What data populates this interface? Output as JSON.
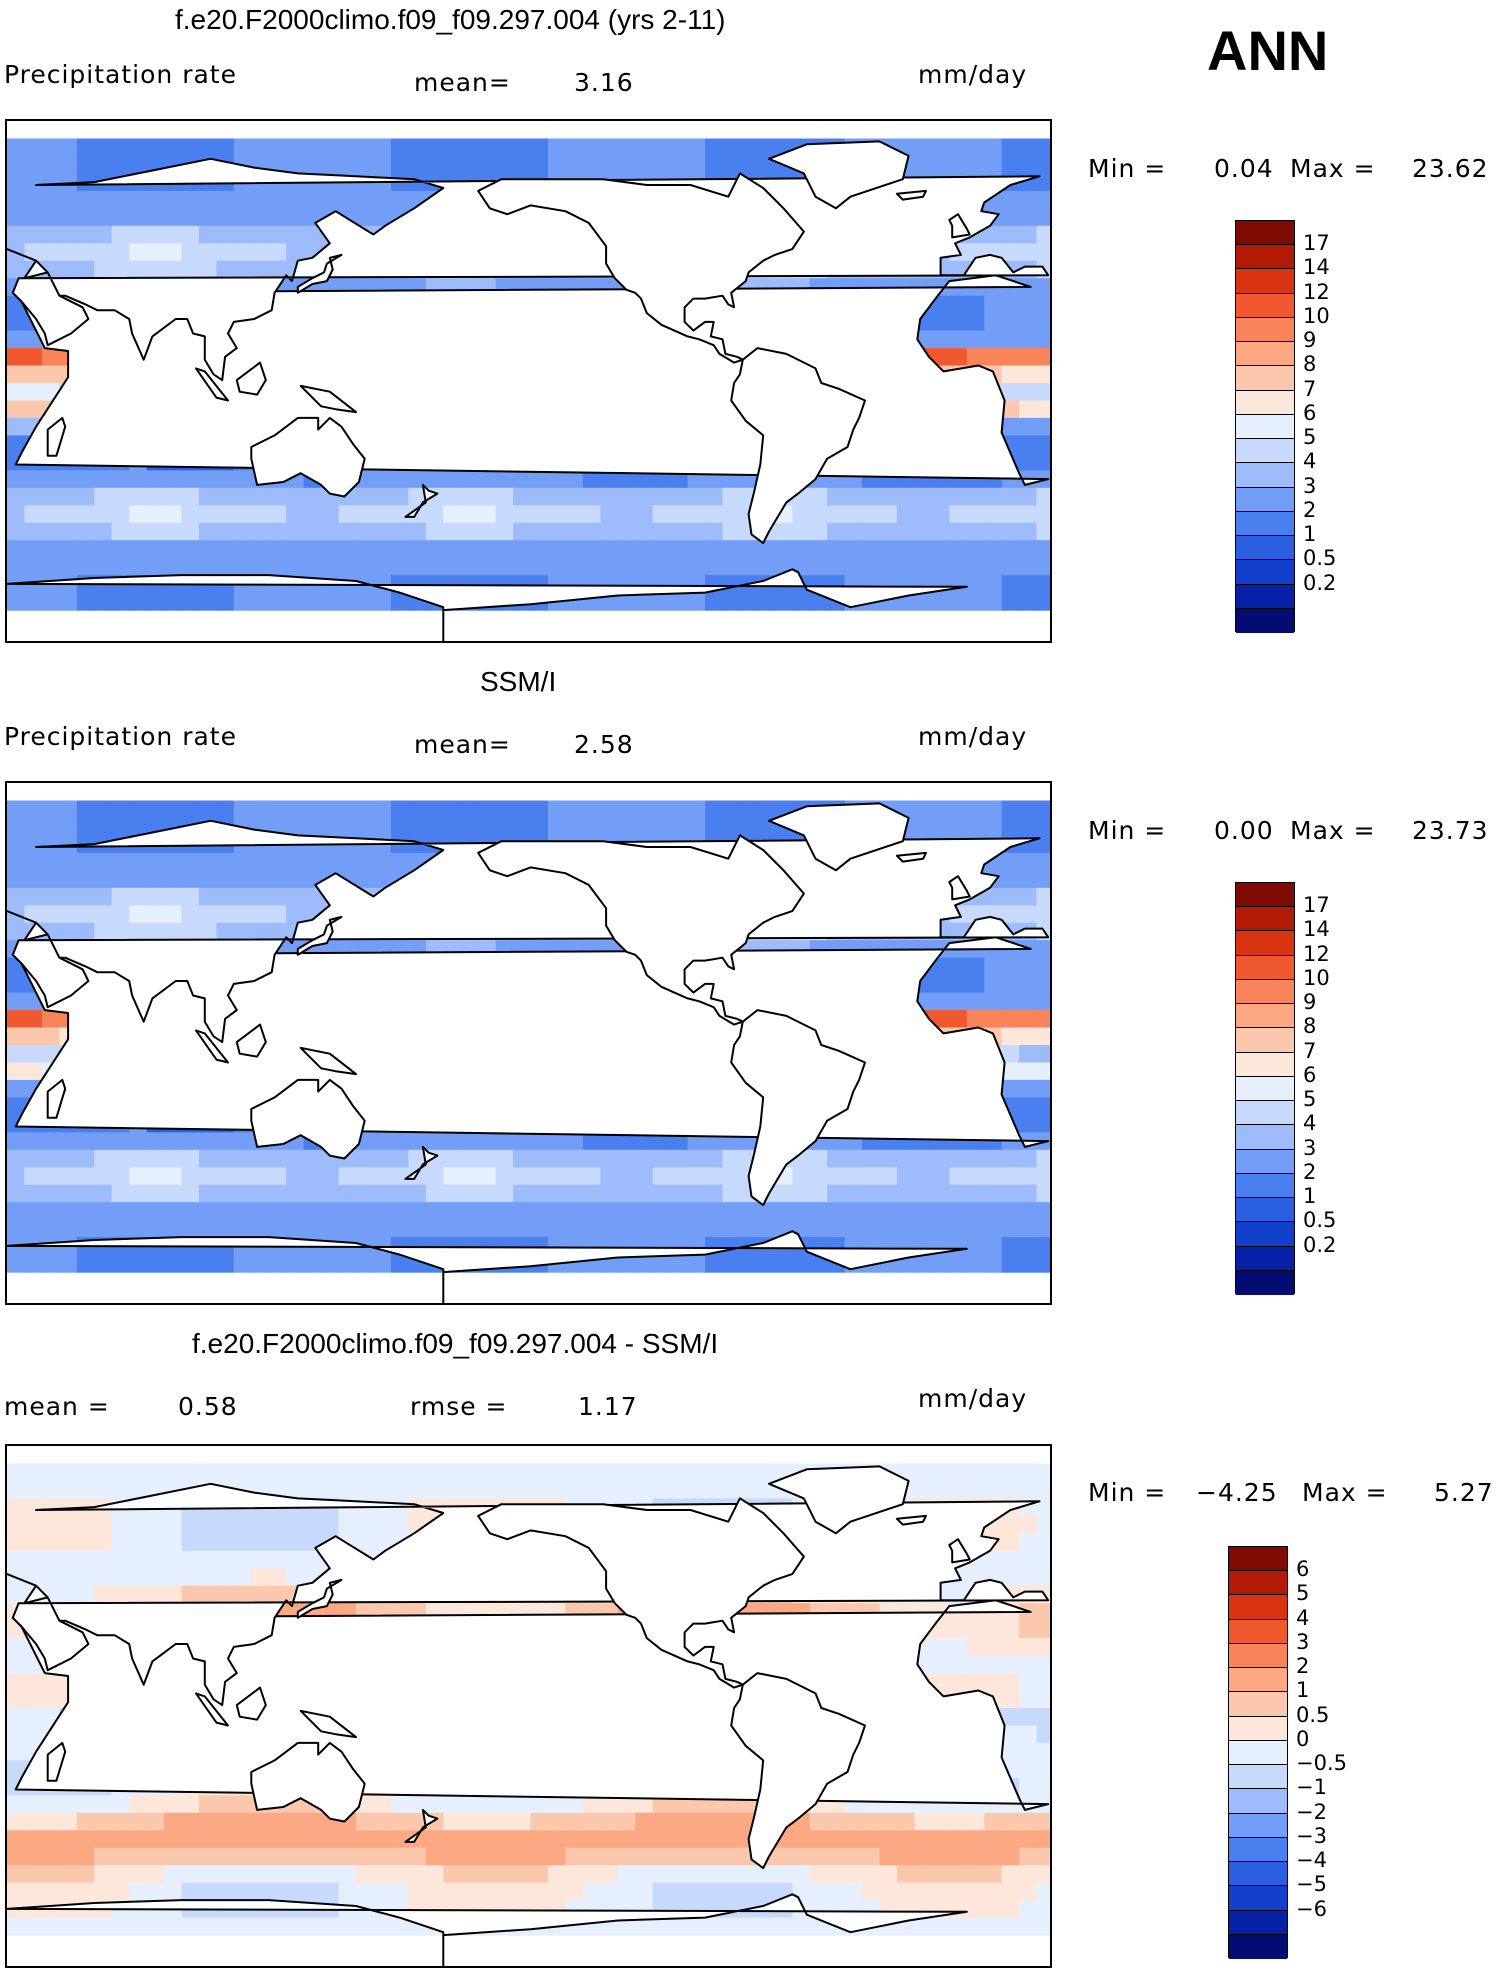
{
  "season": "ANN",
  "colors": {
    "precip_scale": [
      "#020c73",
      "#0620a8",
      "#1240cd",
      "#2a60e0",
      "#4a7ff0",
      "#729ef8",
      "#9ebcfb",
      "#c7d9fc",
      "#e6effd",
      "#fde7da",
      "#fcc8ad",
      "#fba883",
      "#f8845a",
      "#f0592f",
      "#d83412",
      "#b21a06",
      "#7e0a02"
    ],
    "diff_scale": [
      "#020c73",
      "#0620a8",
      "#1240cd",
      "#2a60e0",
      "#4a7ff0",
      "#729ef8",
      "#9ebcfb",
      "#c7d9fc",
      "#e6effd",
      "#fde7da",
      "#fcc8ad",
      "#fba883",
      "#f8845a",
      "#f0592f",
      "#d83412",
      "#b21a06",
      "#7e0a02"
    ]
  },
  "panels": [
    {
      "title": "f.e20.F2000climo.f09_f09.297.004 (yrs 2-11)",
      "left_label": "Precipitation rate",
      "mid_label": "mean=",
      "mid_value": "3.16",
      "units": "mm/day",
      "min_label": "Min =",
      "min_value": "0.04",
      "max_label": "Max =",
      "max_value": "23.62",
      "field": "model",
      "levels": [
        "17",
        "14",
        "12",
        "10",
        "9",
        "8",
        "7",
        "6",
        "5",
        "4",
        "3",
        "2",
        "1",
        "0.5",
        "0.2"
      ]
    },
    {
      "title": "SSM/I",
      "left_label": "Precipitation rate",
      "mid_label": "mean=",
      "mid_value": "2.58",
      "units": "mm/day",
      "min_label": "Min =",
      "min_value": "0.00",
      "max_label": "Max =",
      "max_value": "23.73",
      "field": "obs",
      "levels": [
        "17",
        "14",
        "12",
        "10",
        "9",
        "8",
        "7",
        "6",
        "5",
        "4",
        "3",
        "2",
        "1",
        "0.5",
        "0.2"
      ]
    },
    {
      "title": "f.e20.F2000climo.f09_f09.297.004 - SSM/I",
      "left_label": "mean =",
      "left_value": "0.58",
      "mid_label": "rmse =",
      "mid_value": "1.17",
      "units": "mm/day",
      "min_label": "Min =",
      "min_value": "−4.25",
      "max_label": "Max =",
      "max_value": "5.27",
      "field": "diff",
      "levels": [
        "6",
        "5",
        "4",
        "3",
        "2",
        "1",
        "0.5",
        "0",
        "−0.5",
        "−1",
        "−2",
        "−3",
        "−4",
        "−5",
        "−6"
      ]
    }
  ]
}
